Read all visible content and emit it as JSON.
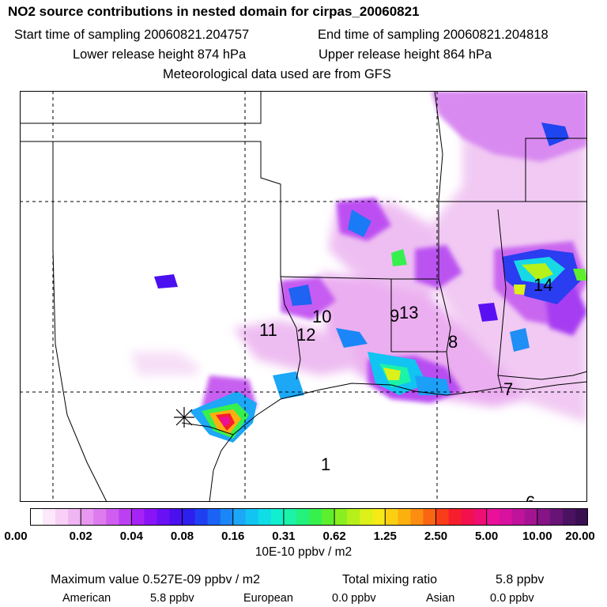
{
  "header": {
    "title": "NO2 source contributions in nested domain for cirpas_20060821",
    "start_label": "Start time of sampling 20060821.204757",
    "end_label": "End time of sampling 20060821.204818",
    "lower_label": "Lower release height  874 hPa",
    "upper_label": "Upper release height  864 hPa",
    "met_label": "Meteorological data used are from GFS"
  },
  "map": {
    "region_labels": [
      "1",
      "6",
      "7",
      "8",
      "9",
      "10",
      "11",
      "12",
      "13",
      "14"
    ],
    "source_marker": "x-marker"
  },
  "colorbar": {
    "tick_labels": [
      "0.00",
      "0.02",
      "0.04",
      "0.08",
      "0.16",
      "0.31",
      "0.62",
      "1.25",
      "2.50",
      "5.00",
      "10.00",
      "20.00"
    ],
    "units": "10E-10 ppbv / m2",
    "colors": [
      "#ffffff",
      "#fde8fb",
      "#f8d0f6",
      "#f0b6f2",
      "#e898f0",
      "#dd7bef",
      "#cf5ef0",
      "#bd3ff2",
      "#a623f5",
      "#8a14f7",
      "#6a10f5",
      "#4b10f0",
      "#2d20ee",
      "#1f40f2",
      "#1a63f5",
      "#1b86f7",
      "#1ca7f7",
      "#12c4f2",
      "#10dde6",
      "#12efcf",
      "#1af3a8",
      "#22f27c",
      "#36f04e",
      "#5def2d",
      "#8aef20",
      "#b6f01a",
      "#dcf019",
      "#f5ea16",
      "#fbd012",
      "#fbb00f",
      "#fb8d10",
      "#fa6512",
      "#f93d18",
      "#f61e2c",
      "#f2104e",
      "#ef0e72",
      "#ea109a",
      "#d8119f",
      "#c0129a",
      "#a41492",
      "#861486",
      "#681476",
      "#4b1262",
      "#3a0f52"
    ]
  },
  "footer": {
    "max_label": "Maximum value  0.527E-09 ppbv / m2",
    "total_label": "Total mixing ratio",
    "total_value": "5.8 ppbv",
    "american_label": "American",
    "american_value": "5.8 ppbv",
    "european_label": "European",
    "european_value": "0.0 ppbv",
    "asian_label": "Asian",
    "asian_value": "0.0 ppbv"
  }
}
